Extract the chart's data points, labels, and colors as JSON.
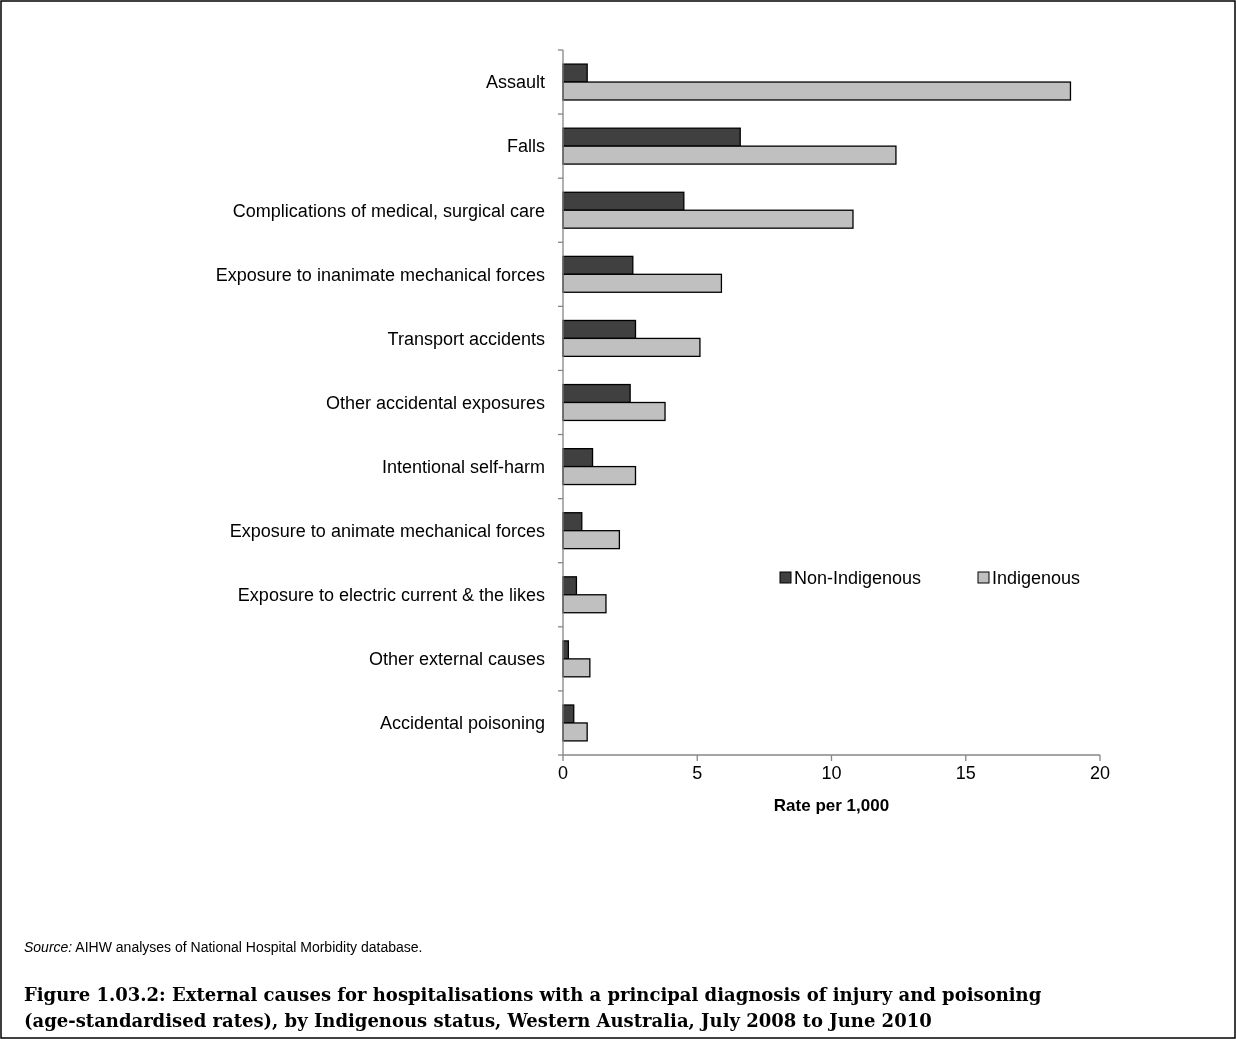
{
  "chart_data": {
    "type": "bar",
    "orientation": "horizontal",
    "title": "Figure 1.03.2: External causes for hospitalisations with a principal diagnosis of injury and poisoning (age-standardised rates), by Indigenous status, Western Australia, July 2008 to June 2010",
    "xlabel": "Rate per 1,000",
    "categories": [
      "Assault",
      "Falls",
      "Complications of medical, surgical care",
      "Exposure to inanimate mechanical forces",
      "Transport accidents",
      "Other accidental exposures",
      "Intentional self-harm",
      "Exposure to animate mechanical forces",
      "Exposure to electric current & the likes",
      "Other external causes",
      "Accidental poisoning"
    ],
    "series": [
      {
        "name": "Non-Indigenous",
        "color": "#404040",
        "values": [
          0.9,
          6.6,
          4.5,
          2.6,
          2.7,
          2.5,
          1.1,
          0.7,
          0.5,
          0.2,
          0.4
        ]
      },
      {
        "name": "Indigenous",
        "color": "#c0c0c0",
        "values": [
          18.9,
          12.4,
          10.8,
          5.9,
          5.1,
          3.8,
          2.7,
          2.1,
          1.6,
          1.0,
          0.9
        ]
      }
    ],
    "xlim": [
      0,
      20
    ],
    "xticks": [
      0,
      5,
      10,
      15,
      20
    ],
    "grid": false,
    "legend": "right",
    "annotations": [
      "Source: AIHW analyses of National Hospital Morbidity database."
    ]
  }
}
